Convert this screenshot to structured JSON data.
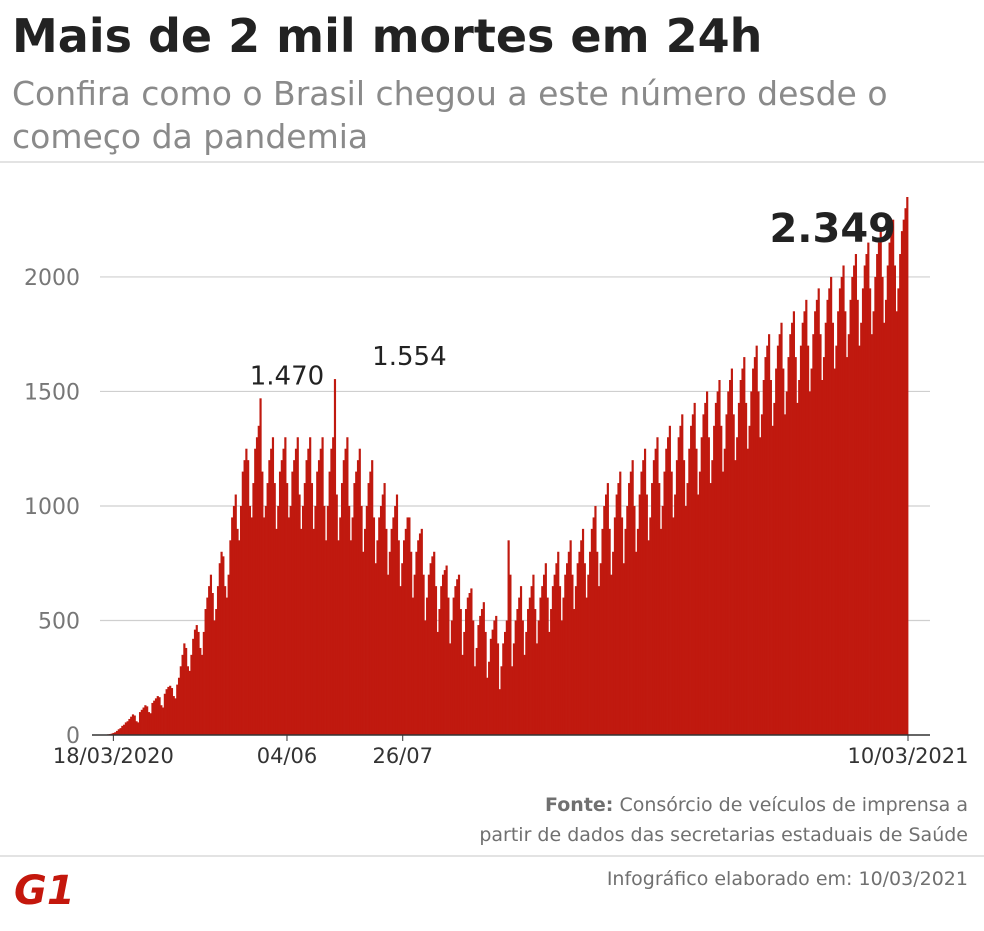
{
  "title": "Mais de 2 mil mortes em 24h",
  "subtitle": "Confira como o Brasil chegou a este número desde o começo da pandemia",
  "source_label": "Fonte:",
  "source_line1": "Consórcio de veículos de imprensa a",
  "source_line2": "partir de dados das secretarias estaduais de Saúde",
  "footer": "Infográfico elaborado em: 10/03/2021",
  "logo_text": "G1",
  "colors": {
    "bar": "#c0190f",
    "logo": "#c4170c",
    "grid": "#cfcfcf",
    "text": "#222222",
    "muted": "#8a8a8a"
  },
  "chart_data": {
    "type": "bar",
    "title": "Mais de 2 mil mortes em 24h",
    "xlabel": "",
    "ylabel": "",
    "ylim": [
      0,
      2349
    ],
    "yticks": [
      0,
      500,
      1000,
      1500,
      2000
    ],
    "grid": true,
    "legend": "none",
    "x_tick_labels": [
      {
        "label": "18/03/2020",
        "x": "2020-03-18"
      },
      {
        "label": "04/06",
        "x": "2020-06-04"
      },
      {
        "label": "26/07",
        "x": "2020-07-26"
      },
      {
        "label": "10/03/2021",
        "x": "2021-03-10"
      }
    ],
    "annotations": [
      {
        "label": "1.470",
        "x": "2020-06-04",
        "value": 1470
      },
      {
        "label": "1.554",
        "x": "2020-07-29",
        "value": 1554
      },
      {
        "label": "2.349",
        "x": "2021-03-10",
        "value": 2349
      }
    ],
    "x_start": "2020-03-12",
    "x_end": "2021-03-10",
    "series": [
      {
        "values": [
          0,
          0,
          1,
          2,
          3,
          4,
          6,
          9,
          12,
          18,
          25,
          30,
          40,
          45,
          55,
          60,
          70,
          80,
          90,
          85,
          60,
          55,
          100,
          110,
          120,
          130,
          125,
          100,
          95,
          140,
          150,
          160,
          170,
          165,
          130,
          120,
          180,
          200,
          210,
          215,
          205,
          170,
          160,
          220,
          250,
          300,
          350,
          400,
          380,
          300,
          280,
          350,
          420,
          460,
          480,
          450,
          380,
          350,
          450,
          550,
          600,
          650,
          700,
          620,
          500,
          550,
          650,
          750,
          800,
          780,
          650,
          600,
          700,
          850,
          950,
          1000,
          1050,
          900,
          850,
          1000,
          1150,
          1200,
          1250,
          1200,
          1000,
          950,
          1100,
          1250,
          1300,
          1350,
          1470,
          1150,
          950,
          1000,
          1100,
          1200,
          1250,
          1300,
          1100,
          900,
          1000,
          1150,
          1200,
          1250,
          1300,
          1100,
          950,
          1000,
          1150,
          1200,
          1250,
          1300,
          1050,
          900,
          1000,
          1100,
          1200,
          1250,
          1300,
          1100,
          900,
          1000,
          1150,
          1200,
          1250,
          1300,
          1000,
          850,
          1000,
          1150,
          1250,
          1300,
          1554,
          1050,
          850,
          950,
          1100,
          1200,
          1250,
          1300,
          1000,
          850,
          950,
          1100,
          1150,
          1200,
          1250,
          1000,
          800,
          900,
          1000,
          1100,
          1150,
          1200,
          950,
          750,
          850,
          950,
          1000,
          1050,
          1100,
          900,
          700,
          800,
          900,
          950,
          1000,
          1050,
          850,
          650,
          750,
          850,
          900,
          950,
          950,
          800,
          600,
          700,
          800,
          850,
          880,
          900,
          700,
          500,
          600,
          700,
          750,
          780,
          800,
          650,
          450,
          550,
          650,
          700,
          720,
          740,
          600,
          400,
          500,
          600,
          650,
          680,
          700,
          550,
          350,
          450,
          550,
          600,
          620,
          640,
          500,
          300,
          380,
          480,
          520,
          550,
          580,
          450,
          250,
          320,
          420,
          460,
          500,
          520,
          400,
          200,
          300,
          400,
          450,
          500,
          850,
          700,
          300,
          400,
          500,
          550,
          600,
          650,
          500,
          350,
          450,
          550,
          600,
          650,
          700,
          550,
          400,
          500,
          600,
          650,
          700,
          750,
          600,
          450,
          550,
          650,
          700,
          750,
          800,
          650,
          500,
          600,
          700,
          750,
          800,
          850,
          700,
          550,
          650,
          750,
          800,
          850,
          900,
          750,
          600,
          700,
          800,
          900,
          950,
          1000,
          800,
          650,
          750,
          900,
          1000,
          1050,
          1100,
          900,
          700,
          800,
          950,
          1050,
          1100,
          1150,
          950,
          750,
          900,
          1000,
          1100,
          1150,
          1200,
          1000,
          800,
          900,
          1050,
          1150,
          1200,
          1250,
          1050,
          850,
          950,
          1100,
          1200,
          1250,
          1300,
          1100,
          900,
          1000,
          1150,
          1250,
          1300,
          1350,
          1150,
          950,
          1050,
          1200,
          1300,
          1350,
          1400,
          1200,
          1000,
          1100,
          1250,
          1350,
          1400,
          1450,
          1250,
          1050,
          1150,
          1300,
          1400,
          1450,
          1500,
          1300,
          1100,
          1200,
          1350,
          1450,
          1500,
          1550,
          1350,
          1150,
          1250,
          1400,
          1500,
          1550,
          1600,
          1400,
          1200,
          1300,
          1450,
          1550,
          1600,
          1650,
          1450,
          1250,
          1350,
          1500,
          1600,
          1650,
          1700,
          1500,
          1300,
          1400,
          1550,
          1650,
          1700,
          1750,
          1550,
          1350,
          1450,
          1600,
          1700,
          1750,
          1800,
          1600,
          1400,
          1500,
          1650,
          1750,
          1800,
          1850,
          1650,
          1450,
          1550,
          1700,
          1800,
          1850,
          1900,
          1700,
          1500,
          1600,
          1750,
          1850,
          1900,
          1950,
          1750,
          1550,
          1650,
          1800,
          1900,
          1950,
          2000,
          1800,
          1600,
          1700,
          1850,
          1950,
          2000,
          2050,
          1850,
          1650,
          1750,
          1900,
          2000,
          2050,
          2100,
          1900,
          1700,
          1800,
          1950,
          2050,
          2100,
          2150,
          1950,
          1750,
          1850,
          2000,
          2100,
          2150,
          2200,
          2000,
          1800,
          1900,
          2050,
          2150,
          2200,
          2250,
          2050,
          1850,
          1950,
          2100,
          2200,
          2250,
          2300,
          2349
        ]
      }
    ]
  }
}
